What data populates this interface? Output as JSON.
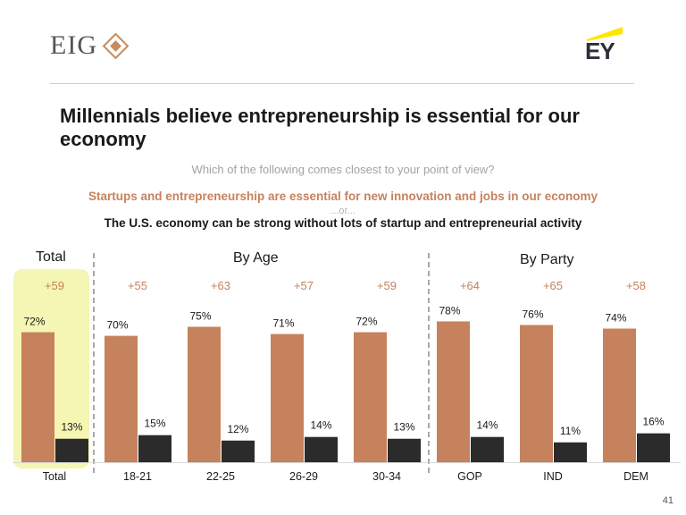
{
  "header": {
    "eig_logo_text": "EIG",
    "ey_logo_text": "EY"
  },
  "title": "Millennials believe entrepreneurship is essential for our economy",
  "question": "Which of the following comes closest to your point of view?",
  "option_1": "Startups and entrepreneurship are essential for new innovation and jobs in our economy",
  "or_text": "...or...",
  "option_2": "The U.S. economy can be strong without lots of startup and entrepreneurial activity",
  "groups": {
    "total": "Total",
    "by_age": "By Age",
    "by_party": "By Party"
  },
  "page_number": "41",
  "colors": {
    "essential": "#c6825d",
    "not_essential": "#2b2b2b",
    "net": "#c6825d",
    "highlight": "#f5f5b4"
  },
  "chart_data": {
    "type": "bar",
    "title": "Millennials believe entrepreneurship is essential for our economy",
    "categories": [
      "Total",
      "18-21",
      "22-25",
      "26-29",
      "30-34",
      "GOP",
      "IND",
      "DEM"
    ],
    "series": [
      {
        "values": [
          72,
          70,
          75,
          71,
          72,
          78,
          76,
          74
        ],
        "labels": [
          "72%",
          "70%",
          "75%",
          "71%",
          "72%",
          "78%",
          "76%",
          "74%"
        ]
      },
      {
        "values": [
          13,
          15,
          12,
          14,
          13,
          14,
          11,
          16
        ],
        "labels": [
          "13%",
          "15%",
          "12%",
          "14%",
          "13%",
          "14%",
          "11%",
          "16%"
        ]
      }
    ],
    "net": [
      "+59",
      "+55",
      "+63",
      "+57",
      "+59",
      "+64",
      "+65",
      "+58"
    ],
    "ylim": [
      0,
      100
    ],
    "grid": false,
    "xlabel": "",
    "ylabel": ""
  }
}
